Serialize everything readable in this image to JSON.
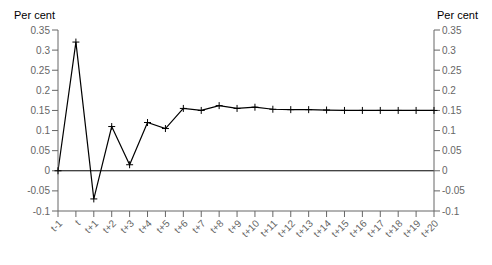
{
  "chart_data": {
    "type": "line",
    "categories": [
      "t-1",
      "t",
      "t+1",
      "t+2",
      "t+3",
      "t+4",
      "t+5",
      "t+6",
      "t+7",
      "t+8",
      "t+9",
      "t+10",
      "t+11",
      "t+12",
      "t+13",
      "t+14",
      "t+15",
      "t+16",
      "t+17",
      "t+18",
      "t+19",
      "t+20"
    ],
    "values": [
      0.0,
      0.32,
      -0.07,
      0.11,
      0.015,
      0.12,
      0.105,
      0.155,
      0.15,
      0.162,
      0.155,
      0.158,
      0.153,
      0.152,
      0.152,
      0.151,
      0.15,
      0.15,
      0.15,
      0.15,
      0.15,
      0.15
    ],
    "color": "#000000",
    "marker": "plus",
    "ylim": [
      -0.1,
      0.35
    ],
    "yticks": [
      -0.1,
      -0.05,
      0,
      0.05,
      0.1,
      0.15,
      0.2,
      0.25,
      0.3,
      0.35
    ],
    "y2lim": [
      -0.1,
      0.35
    ],
    "y2ticks": [
      -0.1,
      -0.05,
      0,
      0.05,
      0.1,
      0.15,
      0.2,
      0.25,
      0.3,
      0.35
    ],
    "ylabel": "Per cent",
    "y2label": "Per cent",
    "hline": 0
  }
}
